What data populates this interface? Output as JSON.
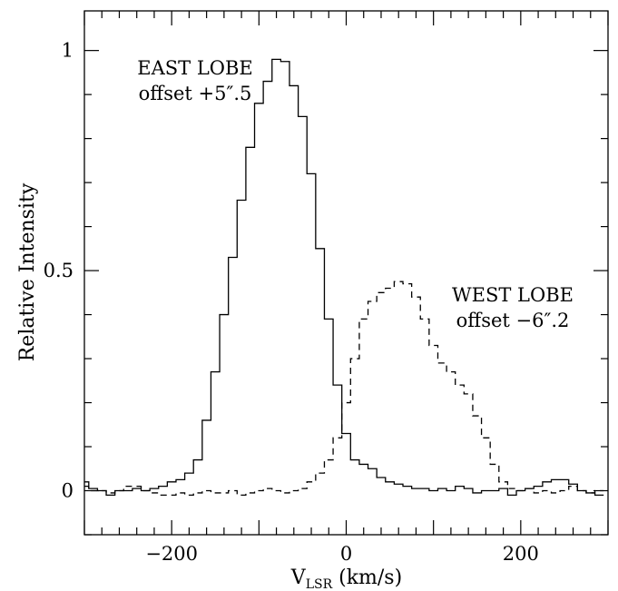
{
  "chart_data": {
    "type": "line",
    "step": true,
    "title": "",
    "xlabel_main": "V",
    "xlabel_sub": "LSR",
    "xlabel_units": " (km/s)",
    "ylabel": "Relative Intensity",
    "xlim": [
      -300,
      300
    ],
    "ylim": [
      -0.1,
      1.09
    ],
    "xticks_major": [
      -200,
      0,
      200
    ],
    "xtick_labels": [
      "−200",
      "0",
      "200"
    ],
    "yticks_major": [
      0,
      0.5,
      1
    ],
    "ytick_labels": [
      "0",
      "0.5",
      "1"
    ],
    "annotations": [
      {
        "line1": "EAST LOBE",
        "line2": "offset +5″.5"
      },
      {
        "line1": "WEST LOBE",
        "line2": "offset −6″.2"
      }
    ],
    "x": [
      -300,
      -290,
      -280,
      -270,
      -260,
      -250,
      -240,
      -230,
      -220,
      -210,
      -200,
      -190,
      -180,
      -170,
      -160,
      -150,
      -140,
      -130,
      -120,
      -110,
      -100,
      -90,
      -80,
      -70,
      -60,
      -50,
      -40,
      -30,
      -20,
      -10,
      0,
      10,
      20,
      30,
      40,
      50,
      60,
      70,
      80,
      90,
      100,
      110,
      120,
      130,
      140,
      150,
      160,
      170,
      180,
      190,
      200,
      210,
      220,
      230,
      240,
      250,
      260,
      270,
      280,
      290
    ],
    "series": [
      {
        "name": "EAST LOBE",
        "style": "solid",
        "values": [
          0.02,
          0.005,
          0.0,
          -0.01,
          0.0,
          0.0,
          0.005,
          0.0,
          0.005,
          0.01,
          0.02,
          0.025,
          0.04,
          0.07,
          0.16,
          0.27,
          0.4,
          0.53,
          0.66,
          0.78,
          0.88,
          0.93,
          0.98,
          0.975,
          0.92,
          0.85,
          0.72,
          0.55,
          0.39,
          0.24,
          0.13,
          0.07,
          0.06,
          0.05,
          0.03,
          0.02,
          0.015,
          0.01,
          0.005,
          0.005,
          0.0,
          0.005,
          0.0,
          0.01,
          0.005,
          -0.005,
          0.0,
          0.0,
          0.005,
          -0.01,
          0.0,
          0.005,
          0.01,
          0.02,
          0.025,
          0.025,
          0.015,
          0.0,
          -0.005,
          -0.01
        ]
      },
      {
        "name": "WEST LOBE",
        "style": "dashed",
        "values": [
          0.01,
          0.0,
          0.0,
          -0.005,
          0.0,
          0.01,
          0.01,
          0.0,
          -0.005,
          -0.01,
          -0.01,
          -0.005,
          -0.01,
          -0.005,
          0.0,
          -0.005,
          -0.005,
          0.0,
          -0.01,
          -0.005,
          0.0,
          0.005,
          0.0,
          -0.005,
          0.0,
          0.005,
          0.02,
          0.04,
          0.07,
          0.12,
          0.2,
          0.3,
          0.39,
          0.43,
          0.45,
          0.46,
          0.475,
          0.47,
          0.44,
          0.39,
          0.33,
          0.29,
          0.27,
          0.24,
          0.22,
          0.17,
          0.12,
          0.06,
          0.02,
          0.005,
          0.0,
          0.005,
          -0.005,
          0.0,
          -0.005,
          0.0,
          0.01,
          0.0,
          -0.005,
          0.0
        ]
      }
    ]
  }
}
